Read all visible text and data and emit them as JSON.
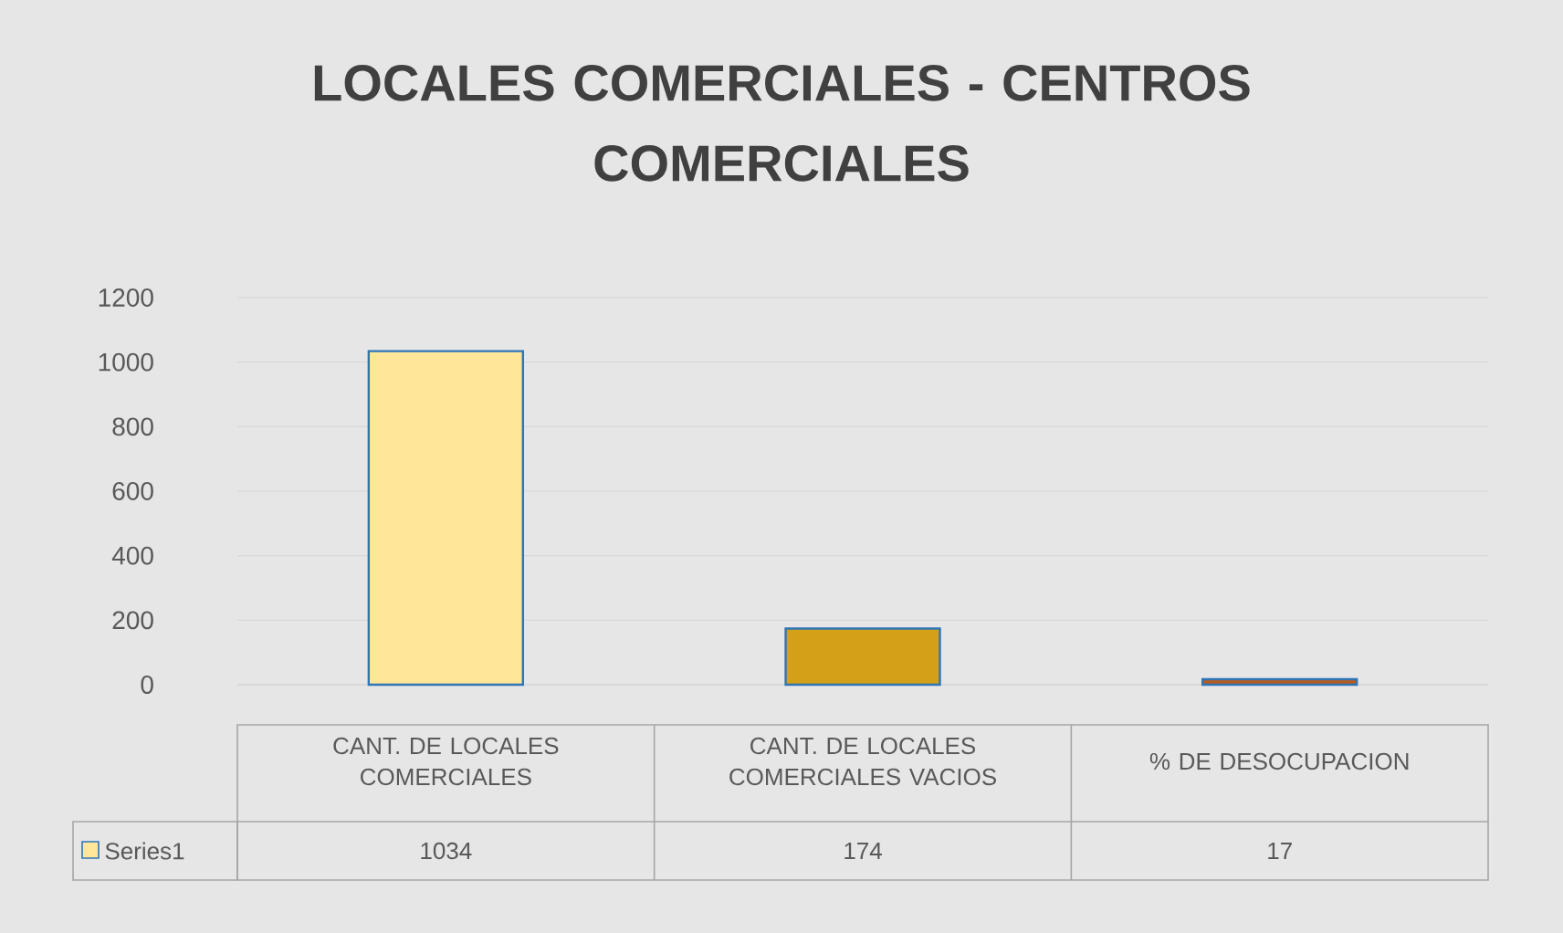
{
  "chart_data": {
    "type": "bar",
    "title": "LOCALES COMERCIALES - CENTROS COMERCIALES",
    "categories": [
      "CANT. DE LOCALES COMERCIALES",
      "CANT. DE LOCALES COMERCIALES VACIOS",
      "% DE DESOCUPACION"
    ],
    "series": [
      {
        "name": "Series1",
        "colors": [
          "#ffe699",
          "#d4a017",
          "#b85b1f"
        ],
        "values": [
          1034,
          174,
          17
        ]
      }
    ],
    "ylim": [
      0,
      1200
    ],
    "yticks": [
      0,
      200,
      400,
      600,
      800,
      1000,
      1200
    ],
    "grid": "y",
    "data_labels": true,
    "legend": "bottom"
  }
}
